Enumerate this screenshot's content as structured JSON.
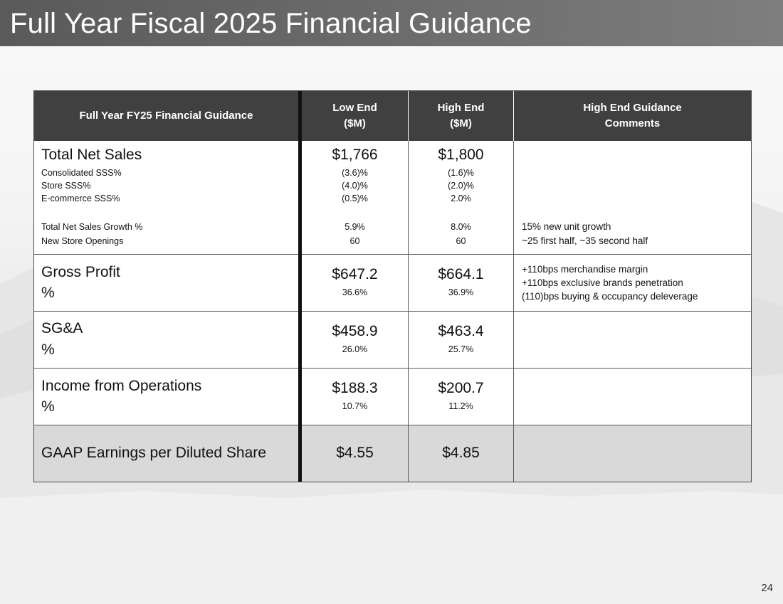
{
  "slide": {
    "title": "Full Year Fiscal 2025 Financial Guidance",
    "page_number": "24"
  },
  "table": {
    "headers": {
      "metric": "Full Year FY25 Financial Guidance",
      "low_line1": "Low End",
      "low_line2": "($M)",
      "high_line1": "High End",
      "high_line2": "($M)",
      "comments_line1": "High End Guidance",
      "comments_line2": "Comments"
    },
    "net_sales": {
      "label": "Total Net Sales",
      "low": "$1,766",
      "high": "$1,800",
      "subrows": [
        {
          "label": "Consolidated SSS%",
          "low": "(3.6)%",
          "high": "(1.6)%",
          "comment": ""
        },
        {
          "label": "Store SSS%",
          "low": "(4.0)%",
          "high": "(2.0)%",
          "comment": ""
        },
        {
          "label": "E-commerce SSS%",
          "low": "(0.5)%",
          "high": "2.0%",
          "comment": ""
        },
        {
          "label": "Total Net Sales Growth %",
          "low": "5.9%",
          "high": "8.0%",
          "comment": "15% new unit growth"
        },
        {
          "label": "New Store Openings",
          "low": "60",
          "high": "60",
          "comment": "~25 first half, ~35 second half"
        }
      ]
    },
    "gross_profit": {
      "label": "Gross Profit",
      "pct_label": "%",
      "low": "$647.2",
      "low_pct": "36.6%",
      "high": "$664.1",
      "high_pct": "36.9%",
      "comments": [
        "+110bps merchandise margin",
        "+110bps exclusive brands penetration",
        "(110)bps buying & occupancy deleverage"
      ]
    },
    "sga": {
      "label": "SG&A",
      "pct_label": "%",
      "low": "$458.9",
      "low_pct": "26.0%",
      "high": "$463.4",
      "high_pct": "25.7%"
    },
    "income_ops": {
      "label": "Income from Operations",
      "pct_label": "%",
      "low": "$188.3",
      "low_pct": "10.7%",
      "high": "$200.7",
      "high_pct": "11.2%"
    },
    "eps": {
      "label": "GAAP Earnings per Diluted Share",
      "low": "$4.55",
      "high": "$4.85"
    }
  }
}
